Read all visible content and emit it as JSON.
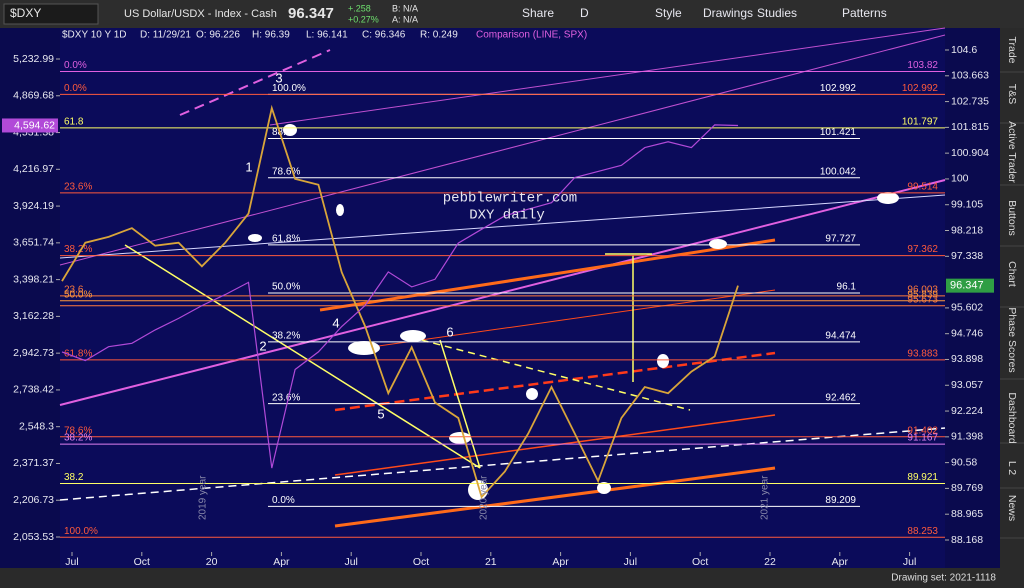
{
  "toolbar": {
    "symbol": "$DXY",
    "description": "US Dollar/USDX - Index - Cash",
    "change": "+.258",
    "change_pct": "+0.27%",
    "bid": "B: N/A",
    "ask": "A: N/A",
    "buttons": [
      "Share",
      "D",
      "Style",
      "Drawings",
      "Studies",
      "Patterns"
    ]
  },
  "chart_data": {
    "type": "line",
    "header": "$DXY 10 Y 1D",
    "ohlc": [
      "D: 11/29/21",
      "O: 96.226",
      "H: 96.39",
      "L: 96.141",
      "C: 96.346",
      "R: 0.249"
    ],
    "comparison": "Comparison (LINE, SPX)",
    "annotation": [
      "pebblewriter.com",
      "DXY daily"
    ],
    "log": true,
    "series": [
      {
        "color": "#d9a53a",
        "values": [
          96.5,
          97.8,
          98.0,
          98.3,
          97.7,
          97.8,
          97.0,
          97.8,
          98.8,
          102.5,
          100.0,
          99.8,
          96.8,
          95.0,
          92.8,
          94.3,
          92.5,
          92.0,
          89.5,
          90.3,
          91.5,
          93.0,
          91.5,
          90.0,
          92.0,
          93.0,
          92.8,
          93.5,
          94.0,
          96.347
        ]
      },
      {
        "color": "#b14ad8",
        "axis": "y2",
        "values": [
          2950,
          2900,
          2980,
          3000,
          3080,
          3150,
          3230,
          3300,
          3380,
          2350,
          2850,
          2950,
          3100,
          3230,
          3450,
          3350,
          3400,
          3650,
          3750,
          3850,
          3900,
          3950,
          4150,
          4200,
          4250,
          4400,
          4450,
          4400,
          4600,
          4594.62
        ]
      }
    ],
    "ylim": [
      88.168,
      104.6
    ],
    "yticks": [
      104.6,
      103.663,
      102.735,
      101.815,
      100.904,
      100,
      99.105,
      98.218,
      97.338,
      95.602,
      94.746,
      93.898,
      93.057,
      92.224,
      91.398,
      90.58,
      89.769,
      88.965,
      88.168
    ],
    "y_marker": 96.347,
    "y2lim": [
      2053.53,
      5232.99
    ],
    "y2ticks": [
      {
        "value": 5232.99,
        "label": "5,232.99"
      },
      {
        "value": 4869.68,
        "label": "4,869.68"
      },
      {
        "value": 4531.38,
        "label": "4,531.38"
      },
      {
        "value": 4216.97,
        "label": "4,216.97"
      },
      {
        "value": 3924.19,
        "label": "3,924.19"
      },
      {
        "value": 3651.74,
        "label": "3,651.74"
      },
      {
        "value": 3398.21,
        "label": "3,398.21"
      },
      {
        "value": 3162.28,
        "label": "3,162.28"
      },
      {
        "value": 2942.73,
        "label": "2,942.73"
      },
      {
        "value": 2738.42,
        "label": "2,738.42"
      },
      {
        "value": 2548.3,
        "label": "2,548.3"
      },
      {
        "value": 2371.37,
        "label": "2,371.37"
      },
      {
        "value": 2206.73,
        "label": "2,206.73"
      },
      {
        "value": 2053.53,
        "label": "2,053.53"
      }
    ],
    "y2_marker": {
      "value": 4594.62,
      "label": "4,594.62"
    },
    "xticks": [
      "Jul",
      "Oct",
      "20",
      "Apr",
      "Jul",
      "Oct",
      "21",
      "Apr",
      "Jul",
      "Oct",
      "22",
      "Apr",
      "Jul"
    ],
    "fib_levels": [
      {
        "pct": "100.0%",
        "value": 102.992,
        "color": "#ffffff"
      },
      {
        "pct": "88.6",
        "value": 101.421,
        "color": "#ffffff"
      },
      {
        "pct": "78.6%",
        "value": 100.042,
        "color": "#ffffff"
      },
      {
        "pct": "61.8%",
        "value": 97.727,
        "color": "#ffffff"
      },
      {
        "pct": "50.0%",
        "value": 96.1,
        "color": "#ffffff"
      },
      {
        "pct": "38.2%",
        "value": 94.474,
        "color": "#ffffff"
      },
      {
        "pct": "23.6%",
        "value": 92.462,
        "color": "#ffffff"
      },
      {
        "pct": "0.0%",
        "value": 89.209,
        "color": "#ffffff"
      },
      {
        "pct": "0.0%",
        "value": 103.82,
        "color": "#e060e0"
      },
      {
        "pct": "0.0%",
        "value": 102.992,
        "color": "#ff5a3c"
      },
      {
        "pct": "61.8",
        "value": 101.797,
        "color": "#ffff66"
      },
      {
        "pct": "23.6%",
        "value": 99.514,
        "color": "#ff5a3c"
      },
      {
        "pct": "38.2%",
        "value": 97.362,
        "color": "#ff5a3c"
      },
      {
        "pct": "23.6",
        "value": 96.003,
        "color": "#ff7a3c"
      },
      {
        "pct": "50.0%",
        "value": 95.839,
        "color": "#ff9a3c"
      },
      {
        "value": 95.673,
        "color": "#ff7a3c"
      },
      {
        "pct": "61.8%",
        "value": 93.883,
        "color": "#ff5a3c"
      },
      {
        "pct": "78.6%",
        "value": 91.402,
        "color": "#ff5a3c"
      },
      {
        "pct": "38.2%",
        "value": 91.167,
        "color": "#e080f0"
      },
      {
        "pct": "38.2",
        "value": 89.921,
        "color": "#ffff66"
      },
      {
        "pct": "100.0%",
        "value": 88.253,
        "color": "#ff5a3c"
      }
    ],
    "waves": [
      "1",
      "2",
      "3",
      "4",
      "5",
      "6"
    ],
    "year_marks": [
      "2019 year",
      "2020 year",
      "2021 year"
    ]
  },
  "side_tabs": [
    "Trade",
    "T&S",
    "Active Trader",
    "Buttons",
    "Chart",
    "Phase Scores",
    "Dashboard",
    "L 2",
    "News"
  ],
  "status": "Drawing set: 2021-1118"
}
